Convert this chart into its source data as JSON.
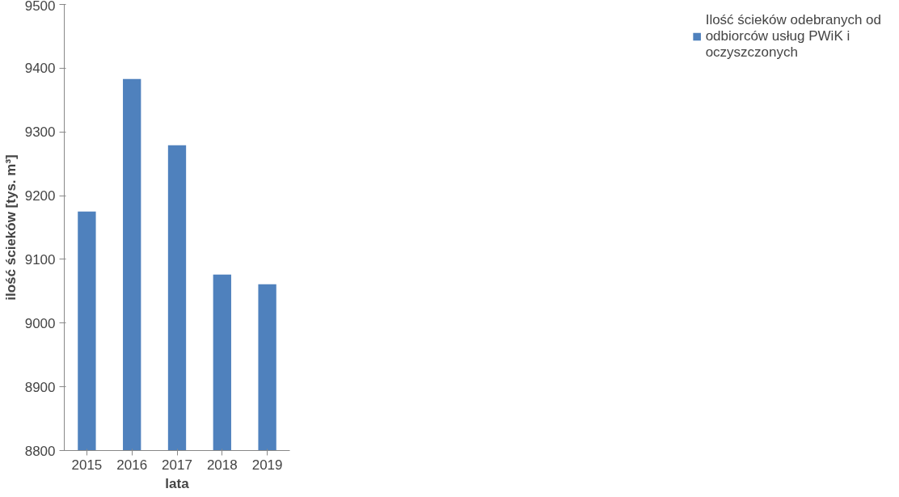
{
  "chart_data": {
    "type": "bar",
    "xlabel": "lata",
    "ylabel": "ilość ścieków [tys. m³]",
    "categories": [
      "2015",
      "2016",
      "2017",
      "2018",
      "2019"
    ],
    "series": [
      {
        "name": "Ilość ścieków odebranych od odbiorców usług PWiK i oczyszczonych",
        "color": "#4f81bd",
        "values": [
          9175,
          9383,
          9279,
          9076,
          9061
        ]
      }
    ],
    "ylim": [
      8800,
      9500
    ],
    "yticks": [
      8800,
      8900,
      9000,
      9100,
      9200,
      9300,
      9400,
      9500
    ],
    "grid": false,
    "legend": "right"
  }
}
